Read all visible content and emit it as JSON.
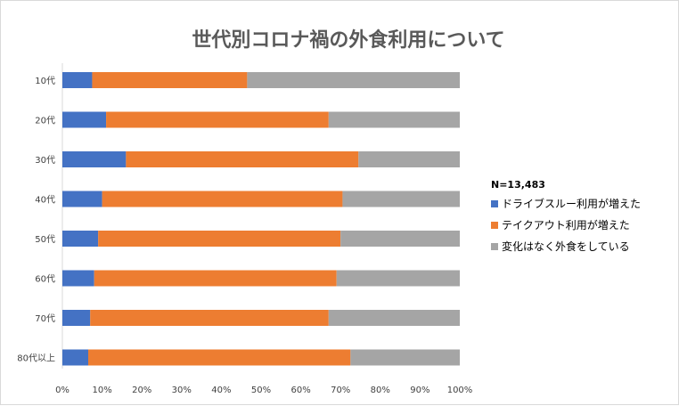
{
  "chart_data": {
    "type": "bar",
    "orientation": "horizontal",
    "stacked": "percent",
    "title": "世代別コロナ禍の外食利用について",
    "note": "N=13,483",
    "categories": [
      "10代",
      "20代",
      "30代",
      "40代",
      "50代",
      "60代",
      "70代",
      "80代以上"
    ],
    "series": [
      {
        "name": "ドライブスルー利用が増えた",
        "color": "#4472c4",
        "values": [
          7.5,
          11,
          16,
          10,
          9,
          8,
          7,
          6.5
        ]
      },
      {
        "name": "テイクアウト利用が増えた",
        "color": "#ed7d31",
        "values": [
          39,
          56,
          58.5,
          60.5,
          61,
          61,
          60,
          66
        ]
      },
      {
        "name": "変化はなく外食をしている",
        "color": "#a5a5a5",
        "values": [
          53.5,
          33,
          25.5,
          29.5,
          30,
          31,
          33,
          27.5
        ]
      }
    ],
    "x_ticks": [
      "0%",
      "10%",
      "20%",
      "30%",
      "40%",
      "50%",
      "60%",
      "70%",
      "80%",
      "90%",
      "100%"
    ],
    "xlim": [
      0,
      100
    ],
    "grid": false,
    "legend_position": "right"
  }
}
